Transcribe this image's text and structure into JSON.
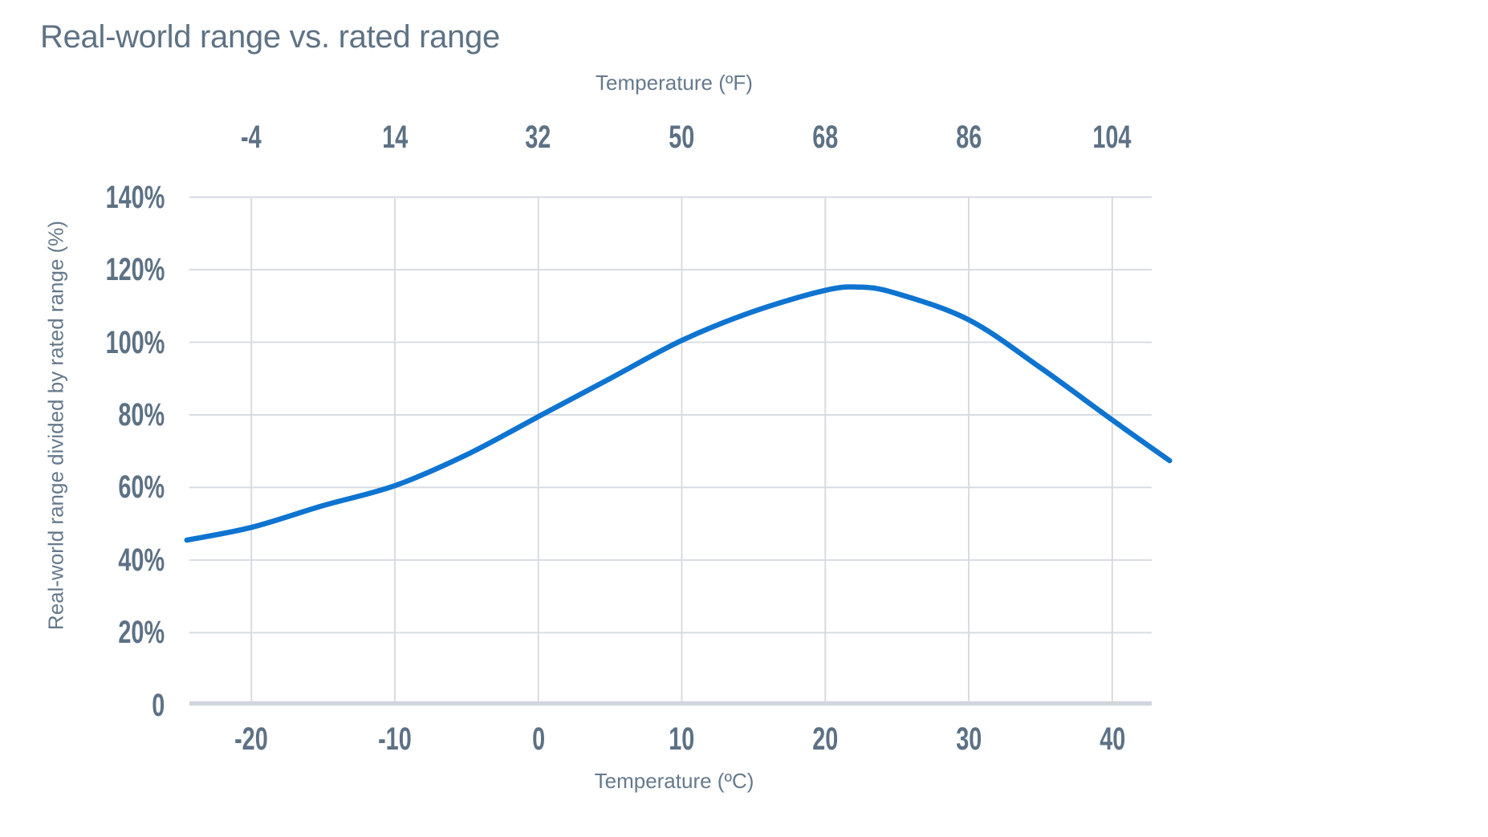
{
  "title": "Real-world range vs. rated range",
  "axes": {
    "top_title": "Temperature (ºF)",
    "bottom_title": "Temperature (ºC)",
    "left_title": "Real-world range divided by rated range (%)"
  },
  "chart_data": {
    "type": "line",
    "title": "Real-world range vs. rated range",
    "xlabel_bottom": "Temperature (ºC)",
    "xlabel_top": "Temperature (ºF)",
    "ylabel": "Real-world range divided by rated range (%)",
    "x_ticks_celsius": [
      -20,
      -10,
      0,
      10,
      20,
      30,
      40
    ],
    "x_tick_labels_celsius": [
      "-20",
      "-10",
      "0",
      "10",
      "20",
      "30",
      "40"
    ],
    "x_tick_labels_fahrenheit": [
      "-4",
      "14",
      "32",
      "50",
      "68",
      "86",
      "104"
    ],
    "y_tick_values": [
      140,
      120,
      100,
      80,
      60,
      40,
      20,
      0
    ],
    "y_tick_labels": [
      "140%",
      "120%",
      "100%",
      "80%",
      "60%",
      "40%",
      "20%",
      "0"
    ],
    "xlim_celsius": [
      -24.5,
      44
    ],
    "ylim_percent": [
      0,
      140
    ],
    "grid": true,
    "legend": "none",
    "series": [
      {
        "name": "Real-world range divided by rated range (%)",
        "x_celsius": [
          -24.5,
          -20,
          -15,
          -10,
          -5,
          0,
          5,
          10,
          15,
          20,
          22.5,
          25,
          30,
          35,
          40,
          44
        ],
        "y_percent": [
          45.5,
          49,
          55,
          60.5,
          69,
          79.5,
          90,
          100.5,
          108.5,
          114.3,
          115.2,
          113.4,
          106.2,
          93,
          78.6,
          67.4
        ]
      }
    ],
    "peak": {
      "x_celsius": 22.5,
      "y_percent": 115.2
    },
    "colors": {
      "line": "#0e74d0",
      "grid": "#d8dce2",
      "axis_line": "#d1d6dc",
      "title_text": "#5e7284",
      "axis_text": "#66798c",
      "tick_text": "#5d7185",
      "background": "#ffffff"
    }
  }
}
